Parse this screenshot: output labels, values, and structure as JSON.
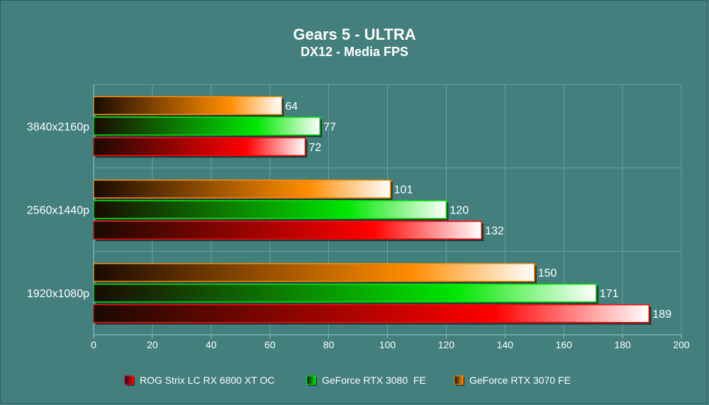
{
  "chart_data": {
    "type": "bar",
    "orientation": "horizontal",
    "title": "Gears 5 - ULTRA",
    "subtitle": "DX12 - Media FPS",
    "categories": [
      "3840x2160p",
      "2560x1440p",
      "1920x1080p"
    ],
    "series": [
      {
        "name": "GeForce RTX 3070 FE",
        "color": "#ff8c00",
        "values": [
          64,
          101,
          150
        ]
      },
      {
        "name": "GeForce RTX 3080  FE",
        "color": "#00e600",
        "values": [
          77,
          120,
          171
        ]
      },
      {
        "name": "ROG Strix LC RX 6800 XT OC",
        "color": "#ff0000",
        "values": [
          72,
          132,
          189
        ]
      }
    ],
    "legend_order": [
      "ROG Strix LC RX 6800 XT OC",
      "GeForce RTX 3080  FE",
      "GeForce RTX 3070 FE"
    ],
    "xlim": [
      0,
      200
    ],
    "xticks": [
      0,
      20,
      40,
      60,
      80,
      100,
      120,
      140,
      160,
      180,
      200
    ],
    "grid": true,
    "legend_position": "bottom"
  }
}
